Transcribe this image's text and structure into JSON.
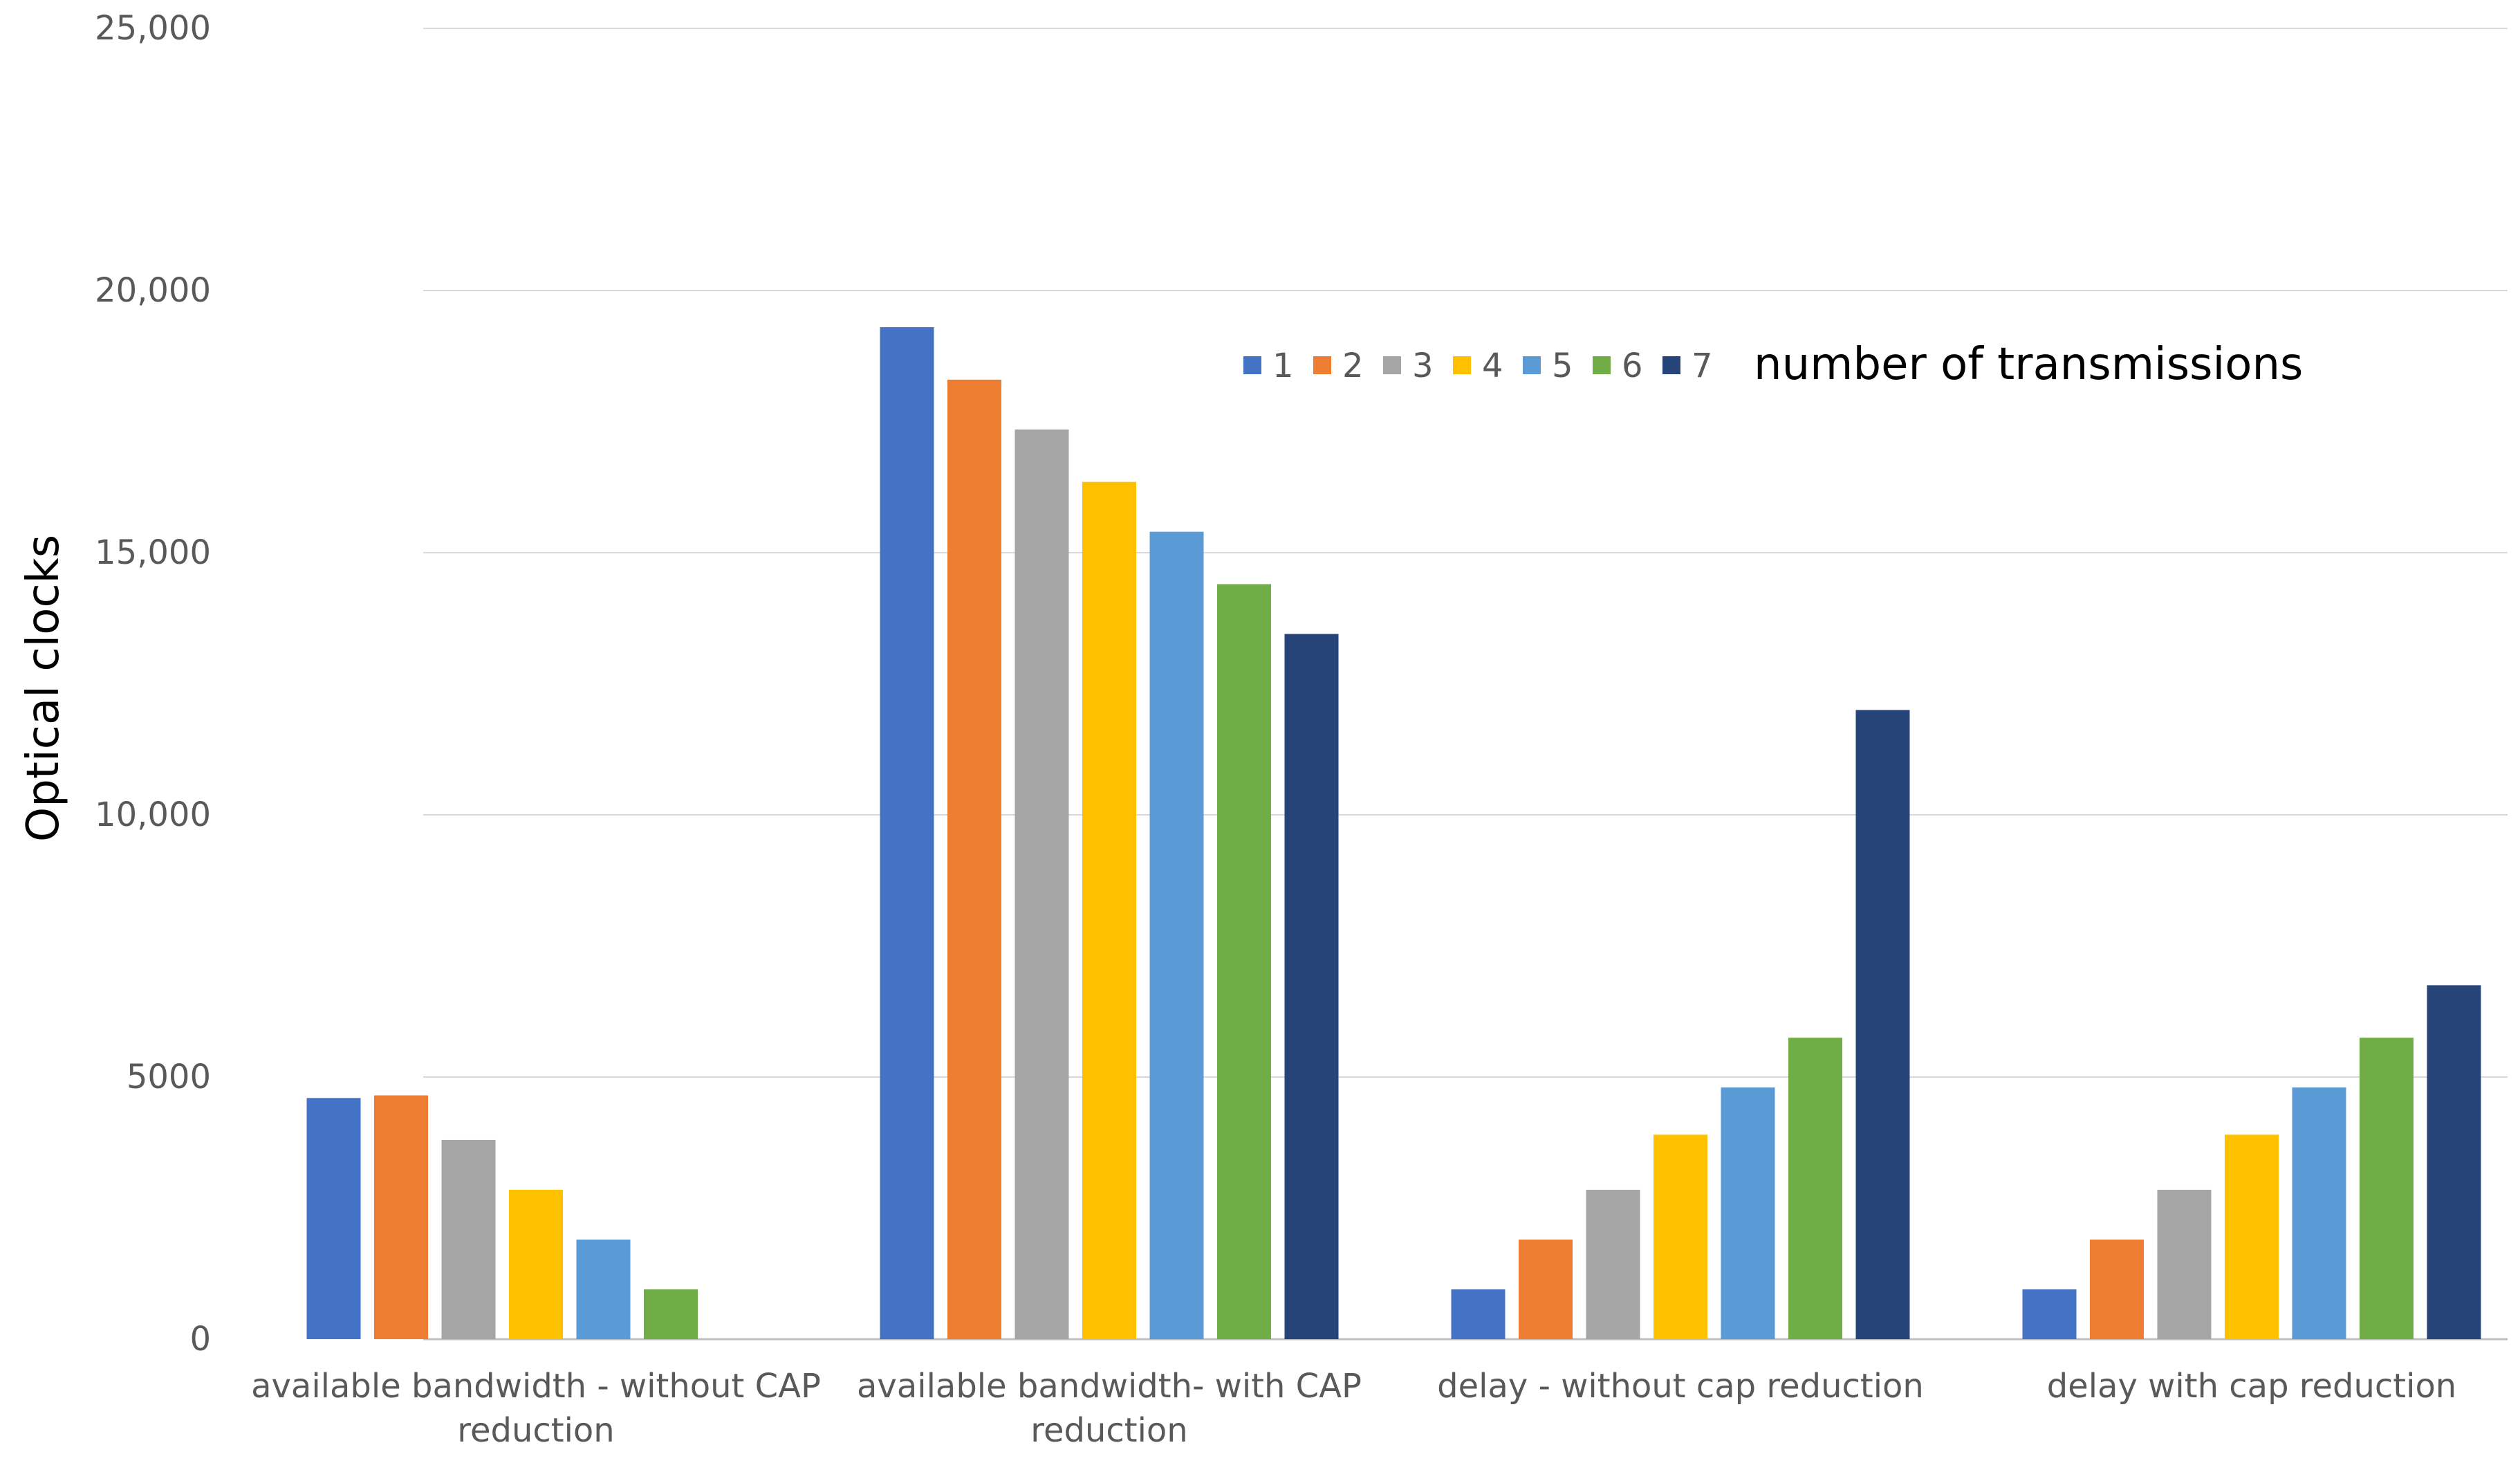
{
  "chart_data": {
    "type": "bar",
    "ylabel": "Optical clocks",
    "xlabel": "",
    "ylim": [
      0,
      25000
    ],
    "y_ticks": [
      {
        "value": 0,
        "label": "0"
      },
      {
        "value": 5000,
        "label": "5000"
      },
      {
        "value": 10000,
        "label": "10,000"
      },
      {
        "value": 15000,
        "label": "15,000"
      },
      {
        "value": 20000,
        "label": "20,000"
      },
      {
        "value": 25000,
        "label": "25,000"
      }
    ],
    "grid": true,
    "categories": [
      [
        "available bandwidth - without CAP",
        "reduction"
      ],
      [
        "available bandwidth- with CAP",
        "reduction"
      ],
      [
        "delay - without cap reduction"
      ],
      [
        "delay with cap reduction"
      ]
    ],
    "legend_title": "number of transmissions",
    "legend_position": "top-center",
    "series": [
      {
        "name": "1",
        "color": "#4472C4",
        "values": [
          4600,
          19300,
          950,
          950
        ]
      },
      {
        "name": "2",
        "color": "#ED7D31",
        "values": [
          4650,
          18300,
          1900,
          1900
        ]
      },
      {
        "name": "3",
        "color": "#A5A5A5",
        "values": [
          3800,
          17350,
          2850,
          2850
        ]
      },
      {
        "name": "4",
        "color": "#FFC000",
        "values": [
          2850,
          16350,
          3900,
          3900
        ]
      },
      {
        "name": "5",
        "color": "#5B9BD5",
        "values": [
          1900,
          15400,
          4800,
          4800
        ]
      },
      {
        "name": "6",
        "color": "#70AD47",
        "values": [
          950,
          14400,
          5750,
          5750
        ]
      },
      {
        "name": "7",
        "color": "#264478",
        "values": [
          0,
          13450,
          12000,
          6750
        ]
      }
    ]
  }
}
